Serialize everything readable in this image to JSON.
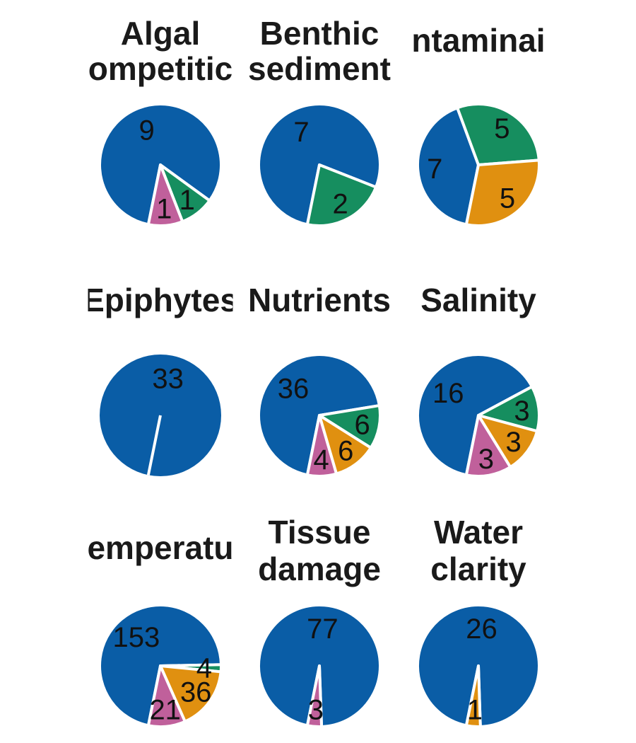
{
  "chart_data": {
    "type": "pie",
    "colors": {
      "blue": "#0a5da6",
      "pink": "#c0609b",
      "orange": "#e09010",
      "green": "#168e5f",
      "edge": "#ffffff"
    },
    "charts": [
      {
        "title": [
          "Algal",
          "ompetitic"
        ],
        "slices": [
          {
            "value": 9,
            "color": "blue"
          },
          {
            "value": 1,
            "color": "green"
          },
          {
            "value": 1,
            "color": "pink"
          }
        ]
      },
      {
        "title": [
          "Benthic",
          "sediment"
        ],
        "slices": [
          {
            "value": 7,
            "color": "blue"
          },
          {
            "value": 2,
            "color": "green"
          }
        ]
      },
      {
        "title": [
          "ntaminai"
        ],
        "slices": [
          {
            "value": 7,
            "color": "blue"
          },
          {
            "value": 5,
            "color": "green"
          },
          {
            "value": 5,
            "color": "orange"
          }
        ]
      },
      {
        "title": [
          "Epiphytes"
        ],
        "slices": [
          {
            "value": 33,
            "color": "blue"
          }
        ]
      },
      {
        "title": [
          "Nutrients"
        ],
        "slices": [
          {
            "value": 36,
            "color": "blue"
          },
          {
            "value": 6,
            "color": "green"
          },
          {
            "value": 6,
            "color": "orange"
          },
          {
            "value": 4,
            "color": "pink"
          }
        ]
      },
      {
        "title": [
          "Salinity"
        ],
        "slices": [
          {
            "value": 16,
            "color": "blue"
          },
          {
            "value": 3,
            "color": "green"
          },
          {
            "value": 3,
            "color": "orange"
          },
          {
            "value": 3,
            "color": "pink"
          }
        ]
      },
      {
        "title": [
          "emperatu"
        ],
        "slices": [
          {
            "value": 153,
            "color": "blue"
          },
          {
            "value": 4,
            "color": "green"
          },
          {
            "value": 36,
            "color": "orange"
          },
          {
            "value": 21,
            "color": "pink"
          }
        ]
      },
      {
        "title": [
          "Tissue",
          "damage"
        ],
        "slices": [
          {
            "value": 77,
            "color": "blue"
          },
          {
            "value": 3,
            "color": "pink"
          }
        ]
      },
      {
        "title": [
          "Water",
          "clarity"
        ],
        "slices": [
          {
            "value": 26,
            "color": "blue"
          },
          {
            "value": 1,
            "color": "orange"
          }
        ]
      }
    ]
  }
}
